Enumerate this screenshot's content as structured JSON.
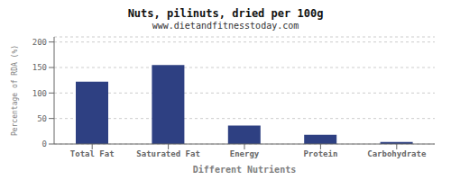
{
  "chart_data": {
    "type": "bar",
    "title": "Nuts, pilinuts, dried per 100g",
    "subtitle": "www.dietandfitnesstoday.com",
    "xlabel": "Different Nutrients",
    "ylabel": "Percentage of RDA (%)",
    "categories": [
      "Total Fat",
      "Saturated Fat",
      "Energy",
      "Protein",
      "Carbohydrate"
    ],
    "values": [
      122,
      155,
      36,
      18,
      4
    ],
    "color": "#2e4082",
    "ylim": [
      0,
      210
    ],
    "yticks": [
      0,
      50,
      100,
      150,
      200
    ],
    "grid": true
  }
}
